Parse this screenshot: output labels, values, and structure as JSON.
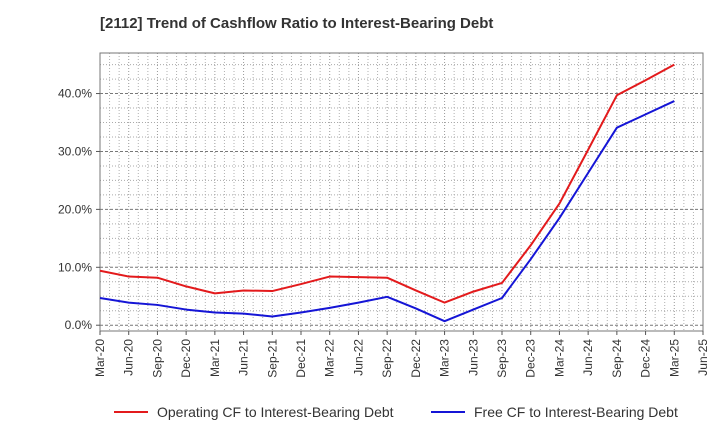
{
  "title": "[2112]  Trend of Cashflow Ratio to Interest-Bearing Debt",
  "chart_data": {
    "type": "line",
    "title": "[2112]  Trend of Cashflow Ratio to Interest-Bearing Debt",
    "xlabel": "",
    "ylabel": "",
    "x_tick_labels": [
      "Mar-20",
      "Jun-20",
      "Sep-20",
      "Dec-20",
      "Mar-21",
      "Jun-21",
      "Sep-21",
      "Dec-21",
      "Mar-22",
      "Jun-22",
      "Sep-22",
      "Dec-22",
      "Mar-23",
      "Jun-23",
      "Sep-23",
      "Dec-23",
      "Mar-24",
      "Jun-24",
      "Sep-24",
      "Dec-24",
      "Mar-25",
      "Jun-25"
    ],
    "y_ticks": [
      0,
      10,
      20,
      30,
      40
    ],
    "y_tick_labels": [
      "0.0%",
      "10.0%",
      "20.0%",
      "30.0%",
      "40.0%"
    ],
    "ylim": [
      -1,
      47
    ],
    "grid": true,
    "legend_position": "bottom",
    "series": [
      {
        "name": "Operating CF to Interest-Bearing Debt",
        "color": "#e31a1c",
        "x": [
          "Mar-20",
          "Jun-20",
          "Sep-20",
          "Dec-20",
          "Mar-21",
          "Jun-21",
          "Sep-21",
          "Dec-21",
          "Mar-22",
          "Jun-22",
          "Sep-22",
          "Dec-22",
          "Mar-23",
          "Jun-23",
          "Sep-23",
          "Dec-23",
          "Mar-24",
          "Jun-24",
          "Sep-24",
          "Dec-24",
          "Mar-25"
        ],
        "values": [
          9.4,
          8.4,
          8.2,
          6.7,
          5.5,
          6.0,
          5.9,
          7.1,
          8.4,
          8.3,
          8.2,
          6.0,
          3.9,
          5.8,
          7.3,
          13.8,
          21.0,
          30.3,
          39.7,
          42.3,
          45.0
        ]
      },
      {
        "name": "Free CF to Interest-Bearing Debt",
        "color": "#1515d6",
        "x": [
          "Mar-20",
          "Jun-20",
          "Sep-20",
          "Dec-20",
          "Mar-21",
          "Jun-21",
          "Sep-21",
          "Dec-21",
          "Mar-22",
          "Jun-22",
          "Sep-22",
          "Dec-22",
          "Mar-23",
          "Jun-23",
          "Sep-23",
          "Dec-23",
          "Mar-24",
          "Jun-24",
          "Sep-24",
          "Dec-24",
          "Mar-25"
        ],
        "values": [
          4.7,
          3.9,
          3.5,
          2.7,
          2.2,
          2.0,
          1.5,
          2.2,
          3.0,
          3.9,
          4.9,
          2.9,
          0.7,
          2.7,
          4.7,
          11.4,
          18.5,
          26.3,
          34.1,
          36.4,
          38.7
        ]
      }
    ]
  }
}
